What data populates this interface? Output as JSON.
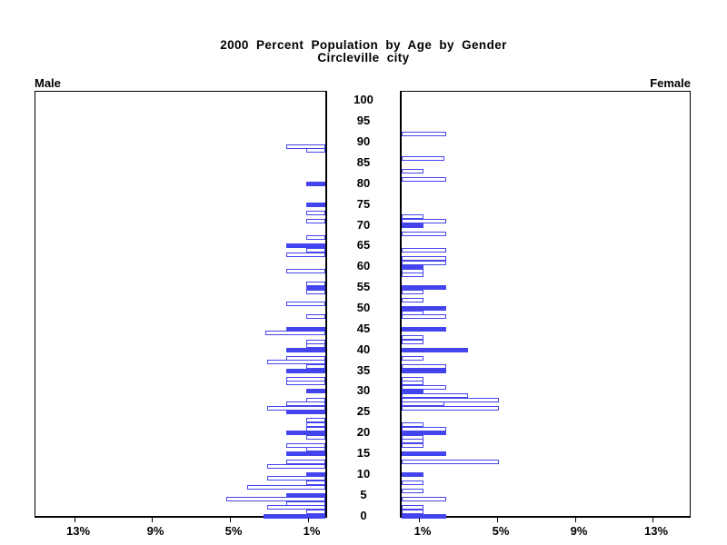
{
  "title": {
    "line1": "2000 Percent Population by Age by Gender",
    "line2": "Circleville city"
  },
  "panel_labels": {
    "left": "Male",
    "right": "Female"
  },
  "colors": {
    "bar_blue": "#4444ee",
    "axis_black": "#000000",
    "background": "#ffffff"
  },
  "chart_data": {
    "type": "bar",
    "subtype": "population-pyramid",
    "title": "2000 Percent Population by Age by Gender",
    "subtitle": "Circleville city",
    "orientation": "horizontal, male bars extend left, female bars extend right",
    "legend": "solid bars mark ages divisible by 5, hollow bars all other single years of age",
    "age_axis": {
      "min": 0,
      "max": 100,
      "label_step": 5,
      "tick_labels": [
        "0",
        "5",
        "10",
        "15",
        "20",
        "25",
        "30",
        "35",
        "40",
        "45",
        "50",
        "55",
        "60",
        "65",
        "70",
        "75",
        "80",
        "85",
        "90",
        "95",
        "100"
      ]
    },
    "pct_axis": {
      "ticks": [
        1,
        5,
        9,
        13
      ],
      "left_tick_labels": [
        "13%",
        "9%",
        "5%",
        "1%"
      ],
      "right_tick_labels": [
        "1%",
        "5%",
        "9%",
        "13%"
      ],
      "unit": "percent"
    },
    "male": [
      {
        "age": 0,
        "pct": 3.2,
        "solid": true
      },
      {
        "age": 1,
        "pct": 1.0,
        "solid": false
      },
      {
        "age": 2,
        "pct": 3.0,
        "solid": false
      },
      {
        "age": 3,
        "pct": 2.0,
        "solid": false
      },
      {
        "age": 4,
        "pct": 5.1,
        "solid": false
      },
      {
        "age": 5,
        "pct": 2.0,
        "solid": true
      },
      {
        "age": 7,
        "pct": 4.0,
        "solid": false
      },
      {
        "age": 8,
        "pct": 1.0,
        "solid": false
      },
      {
        "age": 9,
        "pct": 3.0,
        "solid": false
      },
      {
        "age": 10,
        "pct": 1.0,
        "solid": true
      },
      {
        "age": 12,
        "pct": 3.0,
        "solid": false
      },
      {
        "age": 13,
        "pct": 2.0,
        "solid": false
      },
      {
        "age": 15,
        "pct": 2.0,
        "solid": true
      },
      {
        "age": 16,
        "pct": 1.0,
        "solid": false
      },
      {
        "age": 17,
        "pct": 2.0,
        "solid": false
      },
      {
        "age": 19,
        "pct": 1.0,
        "solid": false
      },
      {
        "age": 20,
        "pct": 2.0,
        "solid": true
      },
      {
        "age": 21,
        "pct": 1.0,
        "solid": false
      },
      {
        "age": 22,
        "pct": 1.0,
        "solid": false
      },
      {
        "age": 23,
        "pct": 1.0,
        "solid": false
      },
      {
        "age": 25,
        "pct": 2.0,
        "solid": true
      },
      {
        "age": 26,
        "pct": 3.0,
        "solid": false
      },
      {
        "age": 27,
        "pct": 2.0,
        "solid": false
      },
      {
        "age": 28,
        "pct": 1.0,
        "solid": false
      },
      {
        "age": 30,
        "pct": 1.0,
        "solid": true
      },
      {
        "age": 32,
        "pct": 2.0,
        "solid": false
      },
      {
        "age": 33,
        "pct": 2.0,
        "solid": false
      },
      {
        "age": 35,
        "pct": 2.0,
        "solid": true
      },
      {
        "age": 36,
        "pct": 1.0,
        "solid": false
      },
      {
        "age": 37,
        "pct": 3.0,
        "solid": false
      },
      {
        "age": 38,
        "pct": 2.0,
        "solid": false
      },
      {
        "age": 40,
        "pct": 2.0,
        "solid": true
      },
      {
        "age": 41,
        "pct": 1.0,
        "solid": false
      },
      {
        "age": 42,
        "pct": 1.0,
        "solid": false
      },
      {
        "age": 44,
        "pct": 3.1,
        "solid": false
      },
      {
        "age": 45,
        "pct": 2.0,
        "solid": true
      },
      {
        "age": 48,
        "pct": 1.0,
        "solid": false
      },
      {
        "age": 51,
        "pct": 2.0,
        "solid": false
      },
      {
        "age": 54,
        "pct": 1.0,
        "solid": false
      },
      {
        "age": 55,
        "pct": 1.0,
        "solid": true
      },
      {
        "age": 56,
        "pct": 1.0,
        "solid": false
      },
      {
        "age": 59,
        "pct": 2.0,
        "solid": false
      },
      {
        "age": 63,
        "pct": 2.0,
        "solid": false
      },
      {
        "age": 64,
        "pct": 1.0,
        "solid": false
      },
      {
        "age": 65,
        "pct": 2.0,
        "solid": true
      },
      {
        "age": 67,
        "pct": 1.0,
        "solid": false
      },
      {
        "age": 71,
        "pct": 1.0,
        "solid": false
      },
      {
        "age": 73,
        "pct": 1.0,
        "solid": false
      },
      {
        "age": 75,
        "pct": 1.0,
        "solid": true
      },
      {
        "age": 80,
        "pct": 1.0,
        "solid": true
      },
      {
        "age": 88,
        "pct": 1.0,
        "solid": false
      },
      {
        "age": 89,
        "pct": 2.0,
        "solid": false
      }
    ],
    "female": [
      {
        "age": 0,
        "pct": 2.3,
        "solid": true
      },
      {
        "age": 1,
        "pct": 1.1,
        "solid": false
      },
      {
        "age": 2,
        "pct": 1.1,
        "solid": false
      },
      {
        "age": 4,
        "pct": 2.3,
        "solid": false
      },
      {
        "age": 6,
        "pct": 1.1,
        "solid": false
      },
      {
        "age": 8,
        "pct": 1.1,
        "solid": false
      },
      {
        "age": 10,
        "pct": 1.1,
        "solid": true
      },
      {
        "age": 13,
        "pct": 5.0,
        "solid": false
      },
      {
        "age": 15,
        "pct": 2.3,
        "solid": true
      },
      {
        "age": 17,
        "pct": 1.1,
        "solid": false
      },
      {
        "age": 18,
        "pct": 1.1,
        "solid": false
      },
      {
        "age": 19,
        "pct": 1.1,
        "solid": false
      },
      {
        "age": 20,
        "pct": 2.3,
        "solid": true
      },
      {
        "age": 21,
        "pct": 2.3,
        "solid": false
      },
      {
        "age": 22,
        "pct": 1.1,
        "solid": false
      },
      {
        "age": 26,
        "pct": 5.0,
        "solid": false
      },
      {
        "age": 27,
        "pct": 2.2,
        "solid": false
      },
      {
        "age": 28,
        "pct": 5.0,
        "solid": false
      },
      {
        "age": 29,
        "pct": 3.4,
        "solid": false
      },
      {
        "age": 30,
        "pct": 1.1,
        "solid": true
      },
      {
        "age": 31,
        "pct": 2.3,
        "solid": false
      },
      {
        "age": 32,
        "pct": 1.1,
        "solid": false
      },
      {
        "age": 33,
        "pct": 1.1,
        "solid": false
      },
      {
        "age": 35,
        "pct": 2.3,
        "solid": true
      },
      {
        "age": 36,
        "pct": 2.3,
        "solid": false
      },
      {
        "age": 38,
        "pct": 1.1,
        "solid": false
      },
      {
        "age": 40,
        "pct": 3.4,
        "solid": true
      },
      {
        "age": 42,
        "pct": 1.1,
        "solid": false
      },
      {
        "age": 43,
        "pct": 1.1,
        "solid": false
      },
      {
        "age": 45,
        "pct": 2.3,
        "solid": true
      },
      {
        "age": 48,
        "pct": 2.3,
        "solid": false
      },
      {
        "age": 49,
        "pct": 1.1,
        "solid": false
      },
      {
        "age": 50,
        "pct": 2.3,
        "solid": true
      },
      {
        "age": 52,
        "pct": 1.1,
        "solid": false
      },
      {
        "age": 54,
        "pct": 1.1,
        "solid": false
      },
      {
        "age": 55,
        "pct": 2.3,
        "solid": true
      },
      {
        "age": 58,
        "pct": 1.1,
        "solid": false
      },
      {
        "age": 59,
        "pct": 1.1,
        "solid": false
      },
      {
        "age": 60,
        "pct": 1.1,
        "solid": true
      },
      {
        "age": 61,
        "pct": 2.3,
        "solid": false
      },
      {
        "age": 62,
        "pct": 2.3,
        "solid": false
      },
      {
        "age": 64,
        "pct": 2.3,
        "solid": false
      },
      {
        "age": 68,
        "pct": 2.3,
        "solid": false
      },
      {
        "age": 70,
        "pct": 1.1,
        "solid": true
      },
      {
        "age": 71,
        "pct": 2.3,
        "solid": false
      },
      {
        "age": 72,
        "pct": 1.1,
        "solid": false
      },
      {
        "age": 81,
        "pct": 2.3,
        "solid": false
      },
      {
        "age": 83,
        "pct": 1.1,
        "solid": false
      },
      {
        "age": 86,
        "pct": 2.2,
        "solid": false
      },
      {
        "age": 92,
        "pct": 2.3,
        "solid": false
      }
    ]
  }
}
